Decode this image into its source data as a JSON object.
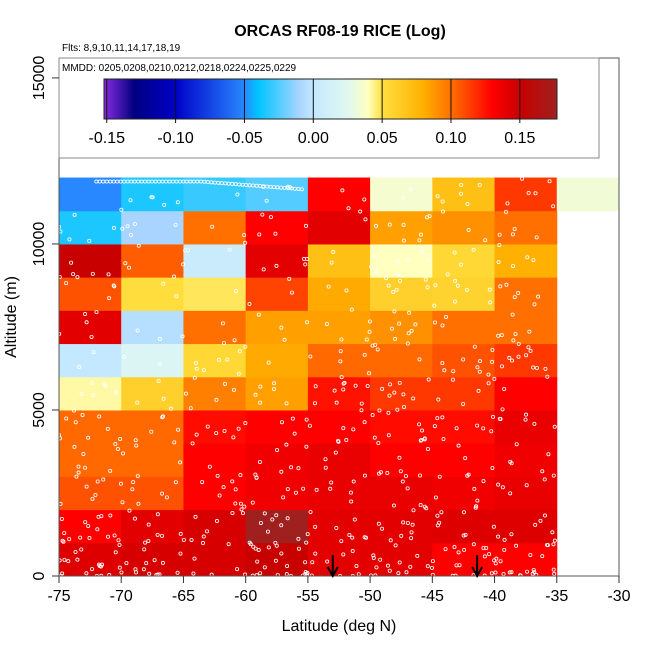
{
  "chart_data": {
    "type": "heatmap",
    "title": "ORCAS RF08-19 RICE (Log)",
    "flights_label": "Flts: 8,9,10,11,14,17,18,19",
    "dates_label": "MMDD: 0205,0208,0210,0212,0218,0224,0225,0229",
    "xlabel": "Latitude (deg N)",
    "ylabel": "Altitude (m)",
    "xlim": [
      -75,
      -30
    ],
    "ylim": [
      0,
      15600
    ],
    "xticks": [
      -75,
      -70,
      -65,
      -60,
      -55,
      -50,
      -45,
      -40,
      -35,
      -30
    ],
    "xtick_labels": [
      "-75",
      "-70",
      "-65",
      "-60",
      "-55",
      "-50",
      "-45",
      "-40",
      "-35",
      "-30"
    ],
    "yticks": [
      0,
      5000,
      10000,
      15000
    ],
    "ytick_labels": [
      "0",
      "5000",
      "10000",
      "15000"
    ],
    "lat_bin_edges": [
      -75,
      -70,
      -65,
      -60,
      -55,
      -50,
      -45,
      -40,
      -35,
      -30
    ],
    "alt_bin_size": 1000,
    "values_by_altitude_bin_from_ground": [
      [
        0.142,
        0.145,
        0.145,
        0.15,
        0.14,
        0.14,
        0.13,
        0.13,
        null
      ],
      [
        0.13,
        0.14,
        0.145,
        0.177,
        0.14,
        0.14,
        0.142,
        0.142,
        null
      ],
      [
        0.108,
        0.108,
        0.13,
        0.135,
        0.138,
        0.138,
        0.135,
        0.138,
        null
      ],
      [
        0.102,
        0.102,
        0.13,
        0.135,
        0.138,
        0.13,
        0.13,
        0.135,
        null
      ],
      [
        0.102,
        0.102,
        0.127,
        0.13,
        0.13,
        0.127,
        0.127,
        0.138,
        null
      ],
      [
        0.042,
        0.06,
        0.095,
        0.085,
        0.125,
        0.115,
        0.115,
        0.13,
        null
      ],
      [
        0.0,
        0.02,
        0.055,
        0.082,
        0.102,
        0.102,
        0.108,
        0.115,
        null
      ],
      [
        0.14,
        -0.005,
        0.1,
        0.085,
        0.085,
        0.09,
        0.1,
        0.1,
        null
      ],
      [
        0.108,
        0.052,
        0.048,
        0.112,
        0.082,
        0.06,
        0.058,
        0.1,
        null
      ],
      [
        0.15,
        0.105,
        0.005,
        0.14,
        0.07,
        0.04,
        0.055,
        0.08,
        null
      ],
      [
        -0.035,
        -0.01,
        0.1,
        0.13,
        0.14,
        0.085,
        0.09,
        0.1,
        null
      ],
      [
        -0.05,
        -0.035,
        -0.03,
        -0.025,
        0.13,
        0.035,
        0.07,
        0.115,
        0.033
      ]
    ],
    "arrows_lat": [
      -53,
      -41.4
    ],
    "colorbar": {
      "range": [
        -0.152,
        0.177
      ],
      "ticks": [
        -0.15,
        -0.1,
        -0.05,
        0.0,
        0.05,
        0.1,
        0.15
      ],
      "tick_labels": [
        "-0.15",
        "-0.10",
        "-0.05",
        "0.00",
        "0.05",
        "0.10",
        "0.15"
      ],
      "stops": [
        [
          -0.152,
          "#8a2be2"
        ],
        [
          -0.13,
          "#000080"
        ],
        [
          -0.1,
          "#0000c8"
        ],
        [
          -0.05,
          "#2888ff"
        ],
        [
          -0.04,
          "#00c4ff"
        ],
        [
          -0.01,
          "#a8d4ff"
        ],
        [
          0.0,
          "#c4e8ff"
        ],
        [
          0.025,
          "#e0f8f0"
        ],
        [
          0.04,
          "#ffffc0"
        ],
        [
          0.05,
          "#ffe040"
        ],
        [
          0.08,
          "#ffb000"
        ],
        [
          0.1,
          "#ff7000"
        ],
        [
          0.13,
          "#ff0000"
        ],
        [
          0.15,
          "#c80000"
        ],
        [
          0.177,
          "#a02020"
        ]
      ]
    }
  }
}
